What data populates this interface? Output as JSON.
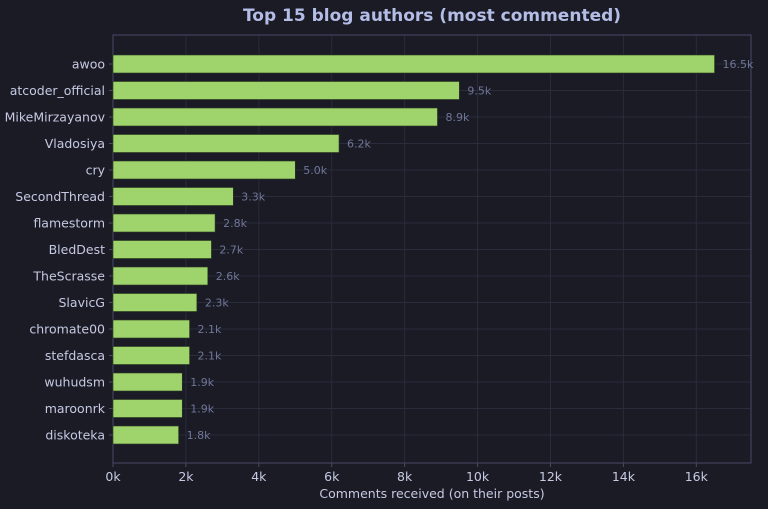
{
  "chart_data": {
    "type": "bar",
    "orientation": "horizontal",
    "title": "Top 15 blog authors (most commented)",
    "xlabel": "Comments received (on their posts)",
    "ylabel": "",
    "xlim": [
      0,
      17500
    ],
    "xticks": [
      0,
      2000,
      4000,
      6000,
      8000,
      10000,
      12000,
      14000,
      16000
    ],
    "xtick_labels": [
      "0k",
      "2k",
      "4k",
      "6k",
      "8k",
      "10k",
      "12k",
      "14k",
      "16k"
    ],
    "grid": true,
    "categories": [
      "awoo",
      "atcoder_official",
      "MikeMirzayanov",
      "Vladosiya",
      "cry",
      "SecondThread",
      "flamestorm",
      "BledDest",
      "TheScrasse",
      "SlavicG",
      "chromate00",
      "stefdasca",
      "wuhudsm",
      "maroonrk",
      "diskoteka"
    ],
    "values": [
      16500,
      9500,
      8900,
      6200,
      5000,
      3300,
      2800,
      2700,
      2600,
      2300,
      2100,
      2100,
      1900,
      1900,
      1800
    ],
    "value_labels": [
      "16.5k",
      "9.5k",
      "8.9k",
      "6.2k",
      "5.0k",
      "3.3k",
      "2.8k",
      "2.7k",
      "2.6k",
      "2.3k",
      "2.1k",
      "2.1k",
      "1.9k",
      "1.9k",
      "1.8k"
    ]
  },
  "colors": {
    "background": "#1b1b26",
    "bar": "#9fd36c",
    "bar_edge": "#2a3a1e",
    "title": "#b3bde6",
    "tick_text": "#c5cae2",
    "value_text": "#6f7797",
    "grid": "#2a2b3b",
    "frame": "#474a66"
  }
}
